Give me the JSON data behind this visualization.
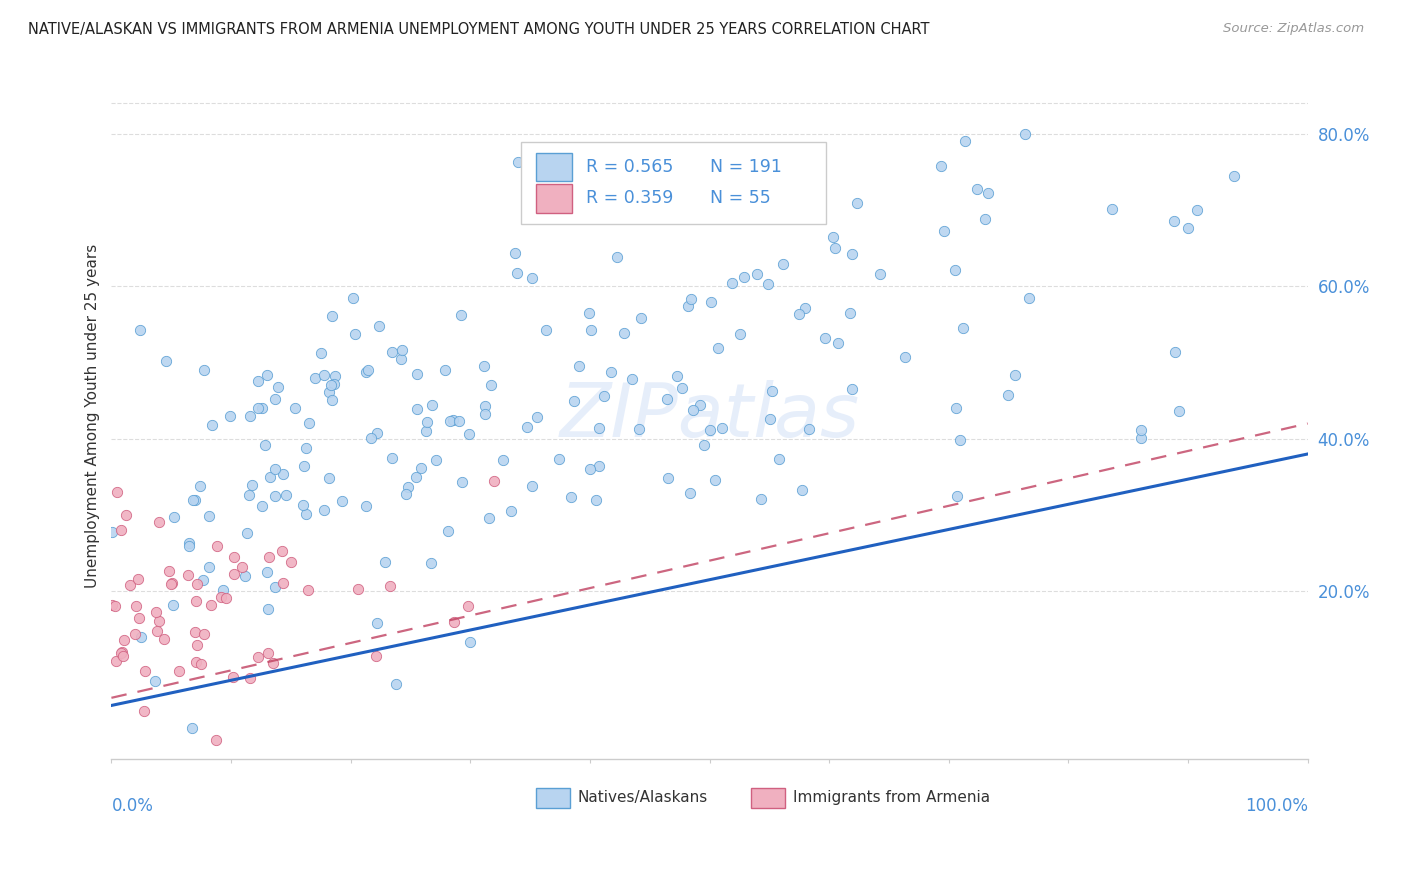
{
  "title": "NATIVE/ALASKAN VS IMMIGRANTS FROM ARMENIA UNEMPLOYMENT AMONG YOUTH UNDER 25 YEARS CORRELATION CHART",
  "source": "Source: ZipAtlas.com",
  "ylabel": "Unemployment Among Youth under 25 years",
  "ytick_values": [
    0.2,
    0.4,
    0.6,
    0.8
  ],
  "series1_name": "Natives/Alaskans",
  "series1_color": "#b8d4f0",
  "series1_edge_color": "#5a9fd4",
  "series1_line_color": "#2060c0",
  "series1_R": 0.565,
  "series1_N": 191,
  "series2_name": "Immigrants from Armenia",
  "series2_color": "#f0b0c0",
  "series2_edge_color": "#d06080",
  "series2_line_color": "#c04060",
  "series2_R": 0.359,
  "series2_N": 55,
  "watermark": "ZIPatlas",
  "background_color": "#ffffff",
  "grid_color": "#dddddd",
  "axis_color": "#4a90d9",
  "legend_text_color": "#4a90d9"
}
